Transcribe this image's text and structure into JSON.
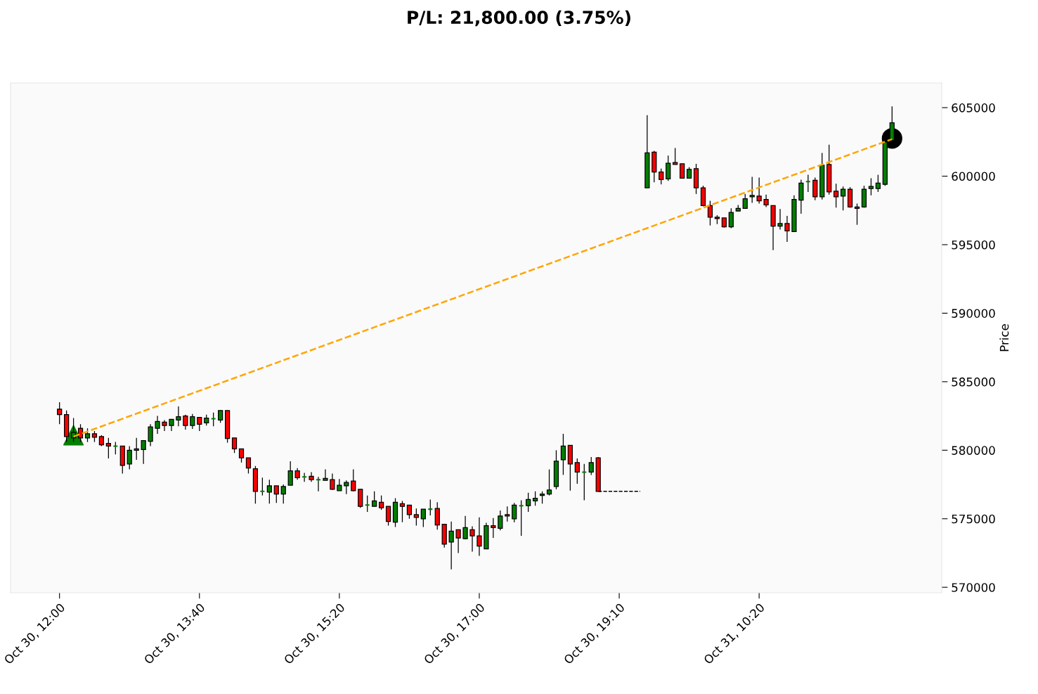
{
  "chart_data": {
    "type": "candlestick",
    "title": "P/L: 21,800.00 (3.75%)",
    "ylabel": "Price",
    "categories": [
      "Oct 30, 12:00",
      null,
      null,
      null,
      null,
      null,
      null,
      null,
      null,
      null,
      null,
      null,
      null,
      null,
      null,
      null,
      null,
      null,
      null,
      null,
      "Oct 30, 13:40",
      null,
      null,
      null,
      null,
      null,
      null,
      null,
      null,
      null,
      null,
      null,
      null,
      null,
      null,
      null,
      null,
      null,
      null,
      null,
      "Oct 30, 15:20",
      null,
      null,
      null,
      null,
      null,
      null,
      null,
      null,
      null,
      null,
      null,
      null,
      null,
      null,
      null,
      null,
      null,
      null,
      null,
      "Oct 30, 17:00",
      null,
      null,
      null,
      null,
      null,
      null,
      null,
      null,
      null,
      null,
      null,
      null,
      null,
      null,
      null,
      null,
      null,
      null,
      null,
      "Oct 30, 19:10",
      null,
      null,
      null,
      null,
      null,
      null,
      null,
      null,
      null,
      null,
      null,
      null,
      null,
      null,
      null,
      null,
      null,
      null,
      null,
      "Oct 31, 10:20",
      null,
      null,
      null,
      null,
      null,
      null,
      null,
      null,
      null,
      null,
      null,
      null,
      null,
      null,
      null,
      null,
      null,
      null,
      null
    ],
    "ohlc": [
      [
        583000,
        583500,
        581900,
        582600
      ],
      [
        582600,
        582900,
        580600,
        581000
      ],
      [
        580900,
        582350,
        580600,
        581300
      ],
      [
        581600,
        581900,
        580600,
        580900
      ],
      [
        580900,
        581600,
        580600,
        581200
      ],
      [
        581200,
        581400,
        580600,
        580950
      ],
      [
        581000,
        581100,
        580300,
        580400
      ],
      [
        580500,
        580900,
        579400,
        580300
      ],
      [
        580300,
        580600,
        579700,
        580300
      ],
      [
        580300,
        580300,
        578300,
        578900
      ],
      [
        579000,
        580300,
        578600,
        580000
      ],
      [
        580000,
        580900,
        579300,
        580100
      ],
      [
        580050,
        580700,
        579000,
        580700
      ],
      [
        580650,
        581900,
        580300,
        581700
      ],
      [
        581600,
        582500,
        581200,
        582100
      ],
      [
        582050,
        582200,
        581400,
        581800
      ],
      [
        581800,
        582250,
        581400,
        582250
      ],
      [
        582200,
        583200,
        581750,
        582450
      ],
      [
        582500,
        582600,
        581500,
        581800
      ],
      [
        581800,
        582650,
        581550,
        582450
      ],
      [
        582400,
        582400,
        581400,
        581900
      ],
      [
        582000,
        582600,
        581800,
        582350
      ],
      [
        582300,
        582750,
        581750,
        582300
      ],
      [
        582200,
        582900,
        582000,
        582900
      ],
      [
        582900,
        582900,
        580550,
        580850
      ],
      [
        580900,
        580900,
        579800,
        580100
      ],
      [
        580100,
        580100,
        579100,
        579450
      ],
      [
        579450,
        579450,
        578300,
        578700
      ],
      [
        578650,
        578850,
        576100,
        577000
      ],
      [
        577000,
        578000,
        576700,
        577000
      ],
      [
        576950,
        577850,
        576100,
        577400
      ],
      [
        577400,
        577400,
        576150,
        576800
      ],
      [
        576800,
        577500,
        576100,
        577350
      ],
      [
        577450,
        579200,
        577450,
        578500
      ],
      [
        578500,
        578700,
        577850,
        578000
      ],
      [
        578050,
        578350,
        577700,
        578050
      ],
      [
        578100,
        578400,
        577700,
        577850
      ],
      [
        577850,
        578050,
        577000,
        577850
      ],
      [
        577800,
        578600,
        577800,
        577950
      ],
      [
        577850,
        578300,
        577100,
        577150
      ],
      [
        577050,
        577900,
        577050,
        577450
      ],
      [
        577400,
        577800,
        576800,
        577650
      ],
      [
        577750,
        578600,
        577000,
        577050
      ],
      [
        577150,
        577150,
        575800,
        575900
      ],
      [
        576000,
        576700,
        575500,
        576000
      ],
      [
        575900,
        577000,
        575900,
        576300
      ],
      [
        576200,
        576700,
        575650,
        575800
      ],
      [
        575900,
        575900,
        574500,
        574800
      ],
      [
        574750,
        576500,
        574400,
        576200
      ],
      [
        576100,
        576300,
        574750,
        575900
      ],
      [
        576000,
        576000,
        575000,
        575300
      ],
      [
        575300,
        575750,
        574500,
        575100
      ],
      [
        575000,
        575700,
        574400,
        575700
      ],
      [
        575700,
        576400,
        575250,
        575700
      ],
      [
        575750,
        576200,
        574200,
        574550
      ],
      [
        574600,
        574600,
        572900,
        573150
      ],
      [
        573300,
        574800,
        571300,
        574100
      ],
      [
        574200,
        574200,
        572500,
        573600
      ],
      [
        573550,
        575200,
        573500,
        574350
      ],
      [
        574200,
        574450,
        572600,
        573750
      ],
      [
        573750,
        575100,
        572300,
        573000
      ],
      [
        572800,
        574700,
        572800,
        574500
      ],
      [
        574500,
        575050,
        573600,
        574350
      ],
      [
        574300,
        575600,
        574150,
        575200
      ],
      [
        575300,
        575900,
        574800,
        575200
      ],
      [
        575000,
        576150,
        574750,
        576000
      ],
      [
        575950,
        576350,
        573750,
        575950
      ],
      [
        575950,
        576900,
        575500,
        576400
      ],
      [
        576300,
        577000,
        575950,
        576500
      ],
      [
        576700,
        577000,
        576100,
        576800
      ],
      [
        576800,
        578600,
        576700,
        577100
      ],
      [
        577350,
        580000,
        577150,
        579200
      ],
      [
        579300,
        581200,
        578200,
        580300
      ],
      [
        580350,
        580350,
        577050,
        579000
      ],
      [
        579100,
        579400,
        577550,
        578400
      ],
      [
        578400,
        579000,
        576350,
        578400
      ],
      [
        578400,
        579500,
        578200,
        579100
      ],
      [
        579450,
        579500,
        577000,
        577000
      ],
      null,
      null,
      null,
      null,
      null,
      null,
      [
        599150,
        604450,
        599150,
        601700
      ],
      [
        601750,
        601850,
        599550,
        600300
      ],
      [
        600300,
        600550,
        599400,
        599750
      ],
      [
        599800,
        601500,
        599650,
        600950
      ],
      [
        601000,
        602050,
        600850,
        600850
      ],
      [
        600900,
        600900,
        599850,
        599850
      ],
      [
        599850,
        600650,
        599850,
        600500
      ],
      [
        600550,
        600900,
        598700,
        599150
      ],
      [
        599150,
        599300,
        597800,
        597850
      ],
      [
        597850,
        598200,
        596400,
        597000
      ],
      [
        597000,
        597150,
        596500,
        596900
      ],
      [
        596950,
        596950,
        596250,
        596300
      ],
      [
        596300,
        597650,
        596200,
        597350
      ],
      [
        597450,
        597900,
        597450,
        597650
      ],
      [
        597650,
        598700,
        597650,
        598350
      ],
      [
        598500,
        599950,
        598050,
        598600
      ],
      [
        598550,
        599900,
        598000,
        598200
      ],
      [
        598300,
        598650,
        597750,
        597900
      ],
      [
        597850,
        597850,
        594600,
        596350
      ],
      [
        596350,
        597600,
        596100,
        596550
      ],
      [
        596550,
        597100,
        595200,
        596000
      ],
      [
        595950,
        598600,
        595950,
        598300
      ],
      [
        598250,
        599750,
        597250,
        599500
      ],
      [
        599600,
        600100,
        598850,
        599600
      ],
      [
        599700,
        599900,
        598250,
        598500
      ],
      [
        598500,
        601700,
        598300,
        600800
      ],
      [
        600850,
        602300,
        598650,
        598850
      ],
      [
        598900,
        599450,
        597700,
        598500
      ],
      [
        598550,
        599250,
        597500,
        599050
      ],
      [
        599050,
        599200,
        597700,
        597750
      ],
      [
        597750,
        598000,
        596450,
        597650
      ],
      [
        597750,
        599300,
        597700,
        599050
      ],
      [
        599100,
        599850,
        598600,
        599250
      ],
      [
        599100,
        600100,
        598850,
        599500
      ],
      [
        599400,
        602500,
        599300,
        602500
      ],
      [
        602600,
        605100,
        602500,
        603900
      ]
    ],
    "colors": [
      "#ff0000",
      "#ff0000",
      "#008000",
      "#ff0000",
      "#008000",
      "#ff0000",
      "#ff0000",
      "#ff0000",
      "#008000",
      "#ff0000",
      "#008000",
      "#008000",
      "#008000",
      "#008000",
      "#008000",
      "#ff0000",
      "#008000",
      "#008000",
      "#ff0000",
      "#008000",
      "#ff0000",
      "#008000",
      "#008000",
      "#008000",
      "#ff0000",
      "#ff0000",
      "#ff0000",
      "#ff0000",
      "#ff0000",
      "#008000",
      "#008000",
      "#ff0000",
      "#008000",
      "#008000",
      "#ff0000",
      "#008000",
      "#ff0000",
      "#008000",
      "#008000",
      "#ff0000",
      "#008000",
      "#008000",
      "#ff0000",
      "#ff0000",
      "#008000",
      "#008000",
      "#ff0000",
      "#ff0000",
      "#008000",
      "#ff0000",
      "#ff0000",
      "#ff0000",
      "#008000",
      "#008000",
      "#ff0000",
      "#ff0000",
      "#008000",
      "#ff0000",
      "#008000",
      "#ff0000",
      "#ff0000",
      "#008000",
      "#ff0000",
      "#008000",
      "#ff0000",
      "#008000",
      "#008000",
      "#008000",
      "#008000",
      "#008000",
      "#008000",
      "#008000",
      "#008000",
      "#ff0000",
      "#ff0000",
      "#008000",
      "#008000",
      "#ff0000",
      null,
      null,
      null,
      null,
      null,
      null,
      "#008000",
      "#ff0000",
      "#ff0000",
      "#008000",
      "#ff0000",
      "#ff0000",
      "#008000",
      "#ff0000",
      "#ff0000",
      "#ff0000",
      "#ff0000",
      "#ff0000",
      "#008000",
      "#008000",
      "#008000",
      "#008000",
      "#ff0000",
      "#ff0000",
      "#ff0000",
      "#008000",
      "#ff0000",
      "#008000",
      "#008000",
      "#008000",
      "#ff0000",
      "#008000",
      "#ff0000",
      "#ff0000",
      "#008000",
      "#ff0000",
      "#ff0000",
      "#008000",
      "#008000",
      "#008000",
      "#008000",
      "#008000"
    ],
    "series": [
      {
        "type": "line",
        "color": "#ffa500",
        "line_style": "dashed",
        "values": [
          null,
          null,
          581000,
          null,
          null,
          null,
          null,
          null,
          null,
          null,
          null,
          null,
          null,
          null,
          null,
          null,
          null,
          null,
          null,
          null,
          null,
          null,
          null,
          null,
          null,
          null,
          null,
          null,
          null,
          null,
          null,
          null,
          null,
          null,
          null,
          null,
          null,
          null,
          null,
          null,
          null,
          null,
          null,
          null,
          null,
          null,
          null,
          null,
          null,
          null,
          null,
          null,
          null,
          null,
          null,
          null,
          null,
          null,
          null,
          null,
          null,
          null,
          null,
          null,
          null,
          null,
          null,
          null,
          null,
          null,
          null,
          null,
          null,
          null,
          null,
          null,
          null,
          null,
          null,
          null,
          null,
          null,
          null,
          null,
          null,
          null,
          null,
          null,
          null,
          null,
          null,
          null,
          null,
          null,
          null,
          null,
          null,
          null,
          null,
          null,
          null,
          null,
          null,
          null,
          null,
          null,
          null,
          null,
          null,
          null,
          null,
          null,
          null,
          null,
          null,
          null,
          null,
          null,
          null,
          602700
        ]
      },
      {
        "type": "line",
        "color": "#000000",
        "line_style": "dashed",
        "values": [
          null,
          null,
          null,
          null,
          null,
          null,
          null,
          null,
          null,
          null,
          null,
          null,
          null,
          null,
          null,
          null,
          null,
          null,
          null,
          null,
          null,
          null,
          null,
          null,
          null,
          null,
          null,
          null,
          null,
          null,
          null,
          null,
          null,
          null,
          null,
          null,
          null,
          null,
          null,
          null,
          null,
          null,
          null,
          null,
          null,
          null,
          null,
          null,
          null,
          null,
          null,
          null,
          null,
          null,
          null,
          null,
          null,
          null,
          null,
          null,
          null,
          null,
          null,
          null,
          null,
          null,
          null,
          null,
          null,
          null,
          null,
          null,
          null,
          null,
          null,
          null,
          null,
          577000,
          577000,
          577000,
          577000,
          577000,
          577000,
          577000,
          null,
          null,
          null,
          null,
          null,
          null,
          null,
          null,
          null,
          null,
          null,
          null,
          null,
          null,
          null,
          null,
          null,
          null,
          null,
          null,
          null,
          null,
          null,
          null,
          null,
          null,
          null,
          null,
          null,
          null,
          null,
          null,
          null,
          null,
          null,
          null
        ]
      },
      {
        "type": "scatter",
        "marker": "triangle",
        "color": "#008000",
        "values": [
          null,
          null,
          581100,
          null,
          null,
          null,
          null,
          null,
          null,
          null,
          null,
          null,
          null,
          null,
          null,
          null,
          null,
          null,
          null,
          null,
          null,
          null,
          null,
          null,
          null,
          null,
          null,
          null,
          null,
          null,
          null,
          null,
          null,
          null,
          null,
          null,
          null,
          null,
          null,
          null,
          null,
          null,
          null,
          null,
          null,
          null,
          null,
          null,
          null,
          null,
          null,
          null,
          null,
          null,
          null,
          null,
          null,
          null,
          null,
          null,
          null,
          null,
          null,
          null,
          null,
          null,
          null,
          null,
          null,
          null,
          null,
          null,
          null,
          null,
          null,
          null,
          null,
          null,
          null,
          null,
          null,
          null,
          null,
          null,
          null,
          null,
          null,
          null,
          null,
          null,
          null,
          null,
          null,
          null,
          null,
          null,
          null,
          null,
          null,
          null,
          null,
          null,
          null,
          null,
          null,
          null,
          null,
          null,
          null,
          null,
          null,
          null,
          null,
          null,
          null,
          null,
          null,
          null,
          null,
          null
        ]
      },
      {
        "type": "scatter",
        "marker": "circle",
        "color": "#000000",
        "values": [
          null,
          null,
          null,
          null,
          null,
          null,
          null,
          null,
          null,
          null,
          null,
          null,
          null,
          null,
          null,
          null,
          null,
          null,
          null,
          null,
          null,
          null,
          null,
          null,
          null,
          null,
          null,
          null,
          null,
          null,
          null,
          null,
          null,
          null,
          null,
          null,
          null,
          null,
          null,
          null,
          null,
          null,
          null,
          null,
          null,
          null,
          null,
          null,
          null,
          null,
          null,
          null,
          null,
          null,
          null,
          null,
          null,
          null,
          null,
          null,
          null,
          null,
          null,
          null,
          null,
          null,
          null,
          null,
          null,
          null,
          null,
          null,
          null,
          null,
          null,
          null,
          null,
          null,
          null,
          null,
          null,
          null,
          null,
          null,
          null,
          null,
          null,
          null,
          null,
          null,
          null,
          null,
          null,
          null,
          null,
          null,
          null,
          null,
          null,
          null,
          null,
          null,
          null,
          null,
          null,
          null,
          null,
          null,
          null,
          null,
          null,
          null,
          null,
          null,
          null,
          null,
          null,
          null,
          null,
          602750
        ]
      }
    ],
    "ylim": [
      569600,
      606800
    ],
    "yticks": [
      570000,
      575000,
      580000,
      585000,
      590000,
      595000,
      600000,
      605000
    ],
    "grid": false,
    "legend": false
  }
}
